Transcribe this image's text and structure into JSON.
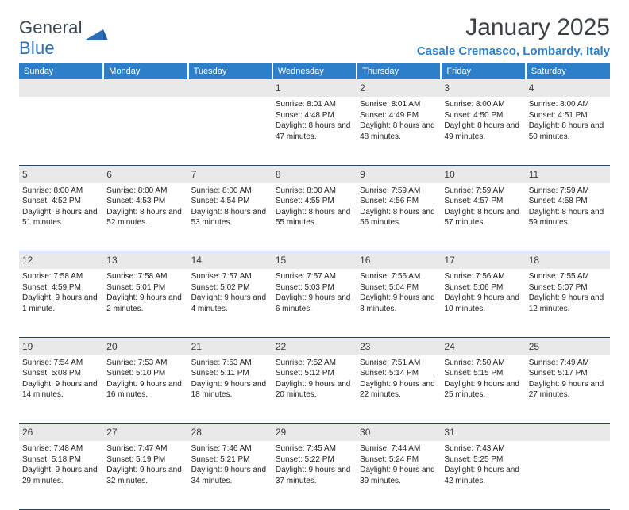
{
  "logo": {
    "text_general": "General",
    "text_blue": "Blue"
  },
  "title": "January 2025",
  "location": "Casale Cremasco, Lombardy, Italy",
  "colors": {
    "header_bg": "#2d7fc9",
    "header_text": "#ffffff",
    "daynum_bg": "#e9e9e9",
    "rule": "#25476d",
    "title_text": "#3a4045",
    "location_text": "#2d7fc9",
    "body_text": "#222222",
    "page_bg": "#ffffff",
    "logo_gray": "#4b5a66",
    "logo_blue": "#2a6db8"
  },
  "typography": {
    "title_fontsize": 30,
    "location_fontsize": 15,
    "dayheader_fontsize": 11,
    "daynum_fontsize": 12,
    "cell_fontsize": 10,
    "font_family": "Arial"
  },
  "day_headers": [
    "Sunday",
    "Monday",
    "Tuesday",
    "Wednesday",
    "Thursday",
    "Friday",
    "Saturday"
  ],
  "weeks": [
    {
      "nums": [
        "",
        "",
        "",
        "1",
        "2",
        "3",
        "4"
      ],
      "cells": [
        null,
        null,
        null,
        {
          "sunrise": "8:01 AM",
          "sunset": "4:48 PM",
          "daylight": "8 hours and 47 minutes."
        },
        {
          "sunrise": "8:01 AM",
          "sunset": "4:49 PM",
          "daylight": "8 hours and 48 minutes."
        },
        {
          "sunrise": "8:00 AM",
          "sunset": "4:50 PM",
          "daylight": "8 hours and 49 minutes."
        },
        {
          "sunrise": "8:00 AM",
          "sunset": "4:51 PM",
          "daylight": "8 hours and 50 minutes."
        }
      ]
    },
    {
      "nums": [
        "5",
        "6",
        "7",
        "8",
        "9",
        "10",
        "11"
      ],
      "cells": [
        {
          "sunrise": "8:00 AM",
          "sunset": "4:52 PM",
          "daylight": "8 hours and 51 minutes."
        },
        {
          "sunrise": "8:00 AM",
          "sunset": "4:53 PM",
          "daylight": "8 hours and 52 minutes."
        },
        {
          "sunrise": "8:00 AM",
          "sunset": "4:54 PM",
          "daylight": "8 hours and 53 minutes."
        },
        {
          "sunrise": "8:00 AM",
          "sunset": "4:55 PM",
          "daylight": "8 hours and 55 minutes."
        },
        {
          "sunrise": "7:59 AM",
          "sunset": "4:56 PM",
          "daylight": "8 hours and 56 minutes."
        },
        {
          "sunrise": "7:59 AM",
          "sunset": "4:57 PM",
          "daylight": "8 hours and 57 minutes."
        },
        {
          "sunrise": "7:59 AM",
          "sunset": "4:58 PM",
          "daylight": "8 hours and 59 minutes."
        }
      ]
    },
    {
      "nums": [
        "12",
        "13",
        "14",
        "15",
        "16",
        "17",
        "18"
      ],
      "cells": [
        {
          "sunrise": "7:58 AM",
          "sunset": "4:59 PM",
          "daylight": "9 hours and 1 minute."
        },
        {
          "sunrise": "7:58 AM",
          "sunset": "5:01 PM",
          "daylight": "9 hours and 2 minutes."
        },
        {
          "sunrise": "7:57 AM",
          "sunset": "5:02 PM",
          "daylight": "9 hours and 4 minutes."
        },
        {
          "sunrise": "7:57 AM",
          "sunset": "5:03 PM",
          "daylight": "9 hours and 6 minutes."
        },
        {
          "sunrise": "7:56 AM",
          "sunset": "5:04 PM",
          "daylight": "9 hours and 8 minutes."
        },
        {
          "sunrise": "7:56 AM",
          "sunset": "5:06 PM",
          "daylight": "9 hours and 10 minutes."
        },
        {
          "sunrise": "7:55 AM",
          "sunset": "5:07 PM",
          "daylight": "9 hours and 12 minutes."
        }
      ]
    },
    {
      "nums": [
        "19",
        "20",
        "21",
        "22",
        "23",
        "24",
        "25"
      ],
      "cells": [
        {
          "sunrise": "7:54 AM",
          "sunset": "5:08 PM",
          "daylight": "9 hours and 14 minutes."
        },
        {
          "sunrise": "7:53 AM",
          "sunset": "5:10 PM",
          "daylight": "9 hours and 16 minutes."
        },
        {
          "sunrise": "7:53 AM",
          "sunset": "5:11 PM",
          "daylight": "9 hours and 18 minutes."
        },
        {
          "sunrise": "7:52 AM",
          "sunset": "5:12 PM",
          "daylight": "9 hours and 20 minutes."
        },
        {
          "sunrise": "7:51 AM",
          "sunset": "5:14 PM",
          "daylight": "9 hours and 22 minutes."
        },
        {
          "sunrise": "7:50 AM",
          "sunset": "5:15 PM",
          "daylight": "9 hours and 25 minutes."
        },
        {
          "sunrise": "7:49 AM",
          "sunset": "5:17 PM",
          "daylight": "9 hours and 27 minutes."
        }
      ]
    },
    {
      "nums": [
        "26",
        "27",
        "28",
        "29",
        "30",
        "31",
        ""
      ],
      "cells": [
        {
          "sunrise": "7:48 AM",
          "sunset": "5:18 PM",
          "daylight": "9 hours and 29 minutes."
        },
        {
          "sunrise": "7:47 AM",
          "sunset": "5:19 PM",
          "daylight": "9 hours and 32 minutes."
        },
        {
          "sunrise": "7:46 AM",
          "sunset": "5:21 PM",
          "daylight": "9 hours and 34 minutes."
        },
        {
          "sunrise": "7:45 AM",
          "sunset": "5:22 PM",
          "daylight": "9 hours and 37 minutes."
        },
        {
          "sunrise": "7:44 AM",
          "sunset": "5:24 PM",
          "daylight": "9 hours and 39 minutes."
        },
        {
          "sunrise": "7:43 AM",
          "sunset": "5:25 PM",
          "daylight": "9 hours and 42 minutes."
        },
        null
      ]
    }
  ],
  "labels": {
    "sunrise": "Sunrise:",
    "sunset": "Sunset:",
    "daylight": "Daylight:"
  }
}
